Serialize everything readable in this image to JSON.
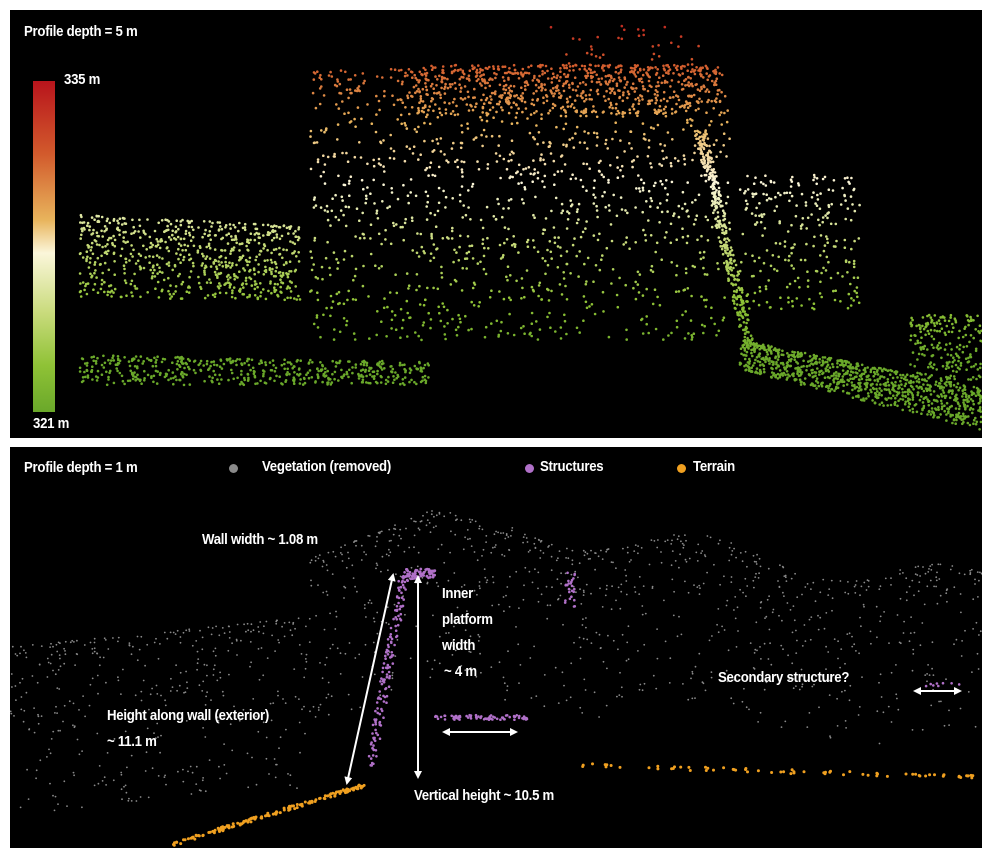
{
  "top_panel": {
    "label": "Profile depth = 5 m",
    "colorbar": {
      "max_label": "335 m",
      "min_label": "321 m",
      "colors": [
        "#b8141c",
        "#d25a2c",
        "#e8b45c",
        "#fbf6da",
        "#c9db7c",
        "#8fc236",
        "#6aa82a"
      ]
    }
  },
  "bottom_panel": {
    "label": "Profile depth = 1 m",
    "legend": [
      {
        "label": "Vegetation (removed)",
        "color": "#8a8a8a"
      },
      {
        "label": "Structures",
        "color": "#b070c8"
      },
      {
        "label": "Terrain",
        "color": "#f0a020"
      }
    ],
    "annotations": {
      "wall_width": "Wall width ~ 1.08 m",
      "inner_platform_line1": "Inner",
      "inner_platform_line2": "platform",
      "inner_platform_line3": "width",
      "inner_platform_line4": "~ 4 m",
      "height_along_wall_line1": "Height along wall (exterior)",
      "height_along_wall_line2": "~ 11.1 m",
      "vertical_height": "Vertical height ~ 10.5 m",
      "secondary_structure": "Secondary structure?"
    }
  }
}
